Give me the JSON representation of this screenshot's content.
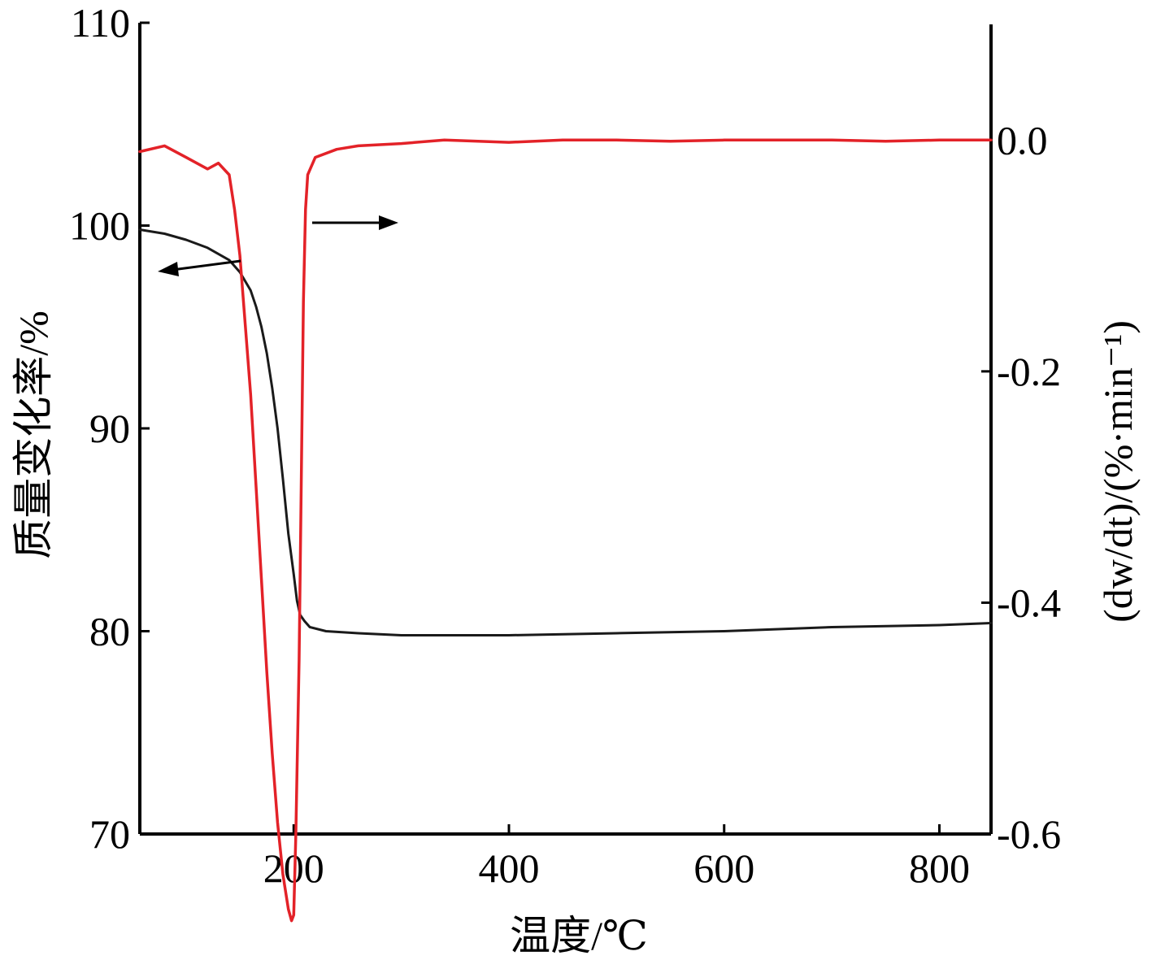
{
  "chart_data": {
    "type": "line",
    "xlabel": "温度/℃",
    "ylabel_left": "质量变化率/%",
    "ylabel_right": "(dw/dt)/(%·min⁻¹)",
    "xlim": [
      57,
      848
    ],
    "ylim_left": [
      70,
      110
    ],
    "ylim_right": [
      -0.6,
      0.1
    ],
    "x_ticks": [
      200,
      400,
      600,
      800
    ],
    "y_ticks_left": [
      70,
      80,
      90,
      100,
      110
    ],
    "y_ticks_right": [
      -0.6,
      -0.4,
      -0.2,
      0.0
    ],
    "x_tick_labels": [
      "200",
      "400",
      "600",
      "800"
    ],
    "y_tick_labels_left": [
      "70",
      "80",
      "90",
      "100",
      "110"
    ],
    "y_tick_labels_right": [
      "-0.6",
      "-0.4",
      "-0.2",
      "0.0"
    ],
    "grid": false,
    "legend": "none",
    "annotations": [
      {
        "kind": "arrow",
        "series": "tg",
        "points_to": "left"
      },
      {
        "kind": "arrow",
        "series": "dtg",
        "points_to": "right"
      }
    ],
    "series": [
      {
        "id": "tg",
        "axis": "left",
        "color": "#1a1a1a",
        "x": [
          57,
          80,
          100,
          120,
          140,
          150,
          160,
          165,
          170,
          175,
          180,
          185,
          190,
          195,
          200,
          203,
          206,
          210,
          215,
          230,
          260,
          300,
          400,
          500,
          600,
          700,
          800,
          848
        ],
        "y": [
          99.8,
          99.6,
          99.3,
          98.9,
          98.3,
          97.7,
          96.8,
          96.0,
          95.0,
          93.7,
          92.0,
          90.0,
          87.5,
          84.8,
          82.8,
          81.5,
          80.8,
          80.5,
          80.2,
          80.0,
          79.9,
          79.8,
          79.8,
          79.9,
          80.0,
          80.2,
          80.3,
          80.4
        ]
      },
      {
        "id": "dtg",
        "axis": "right",
        "color": "#e32228",
        "x": [
          57,
          80,
          100,
          120,
          130,
          140,
          145,
          150,
          155,
          160,
          165,
          170,
          175,
          180,
          185,
          190,
          195,
          198,
          200,
          202,
          205,
          207,
          209,
          211,
          213,
          220,
          240,
          260,
          300,
          340,
          400,
          450,
          500,
          550,
          600,
          650,
          700,
          750,
          800,
          848
        ],
        "y": [
          -0.01,
          -0.005,
          -0.015,
          -0.025,
          -0.02,
          -0.03,
          -0.06,
          -0.1,
          -0.16,
          -0.22,
          -0.3,
          -0.38,
          -0.46,
          -0.53,
          -0.59,
          -0.635,
          -0.665,
          -0.675,
          -0.67,
          -0.6,
          -0.45,
          -0.3,
          -0.14,
          -0.06,
          -0.03,
          -0.015,
          -0.008,
          -0.005,
          -0.003,
          -0.0,
          -0.002,
          0.0,
          0.0,
          -0.001,
          0.0,
          0.0,
          0.0,
          -0.001,
          0.0,
          0.0
        ]
      }
    ]
  }
}
